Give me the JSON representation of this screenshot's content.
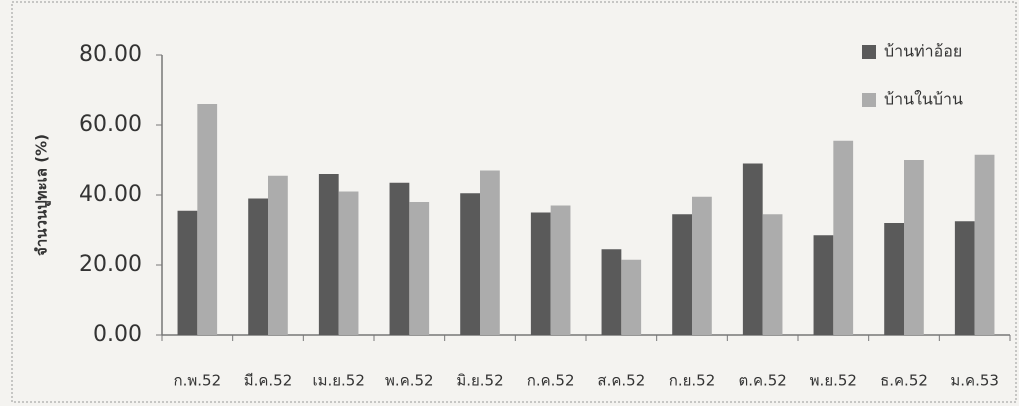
{
  "chart_data": {
    "type": "bar",
    "y_label": "จำนวนปูทะเล (%)",
    "categories": [
      "ก.พ.52",
      "มี.ค.52",
      "เม.ย.52",
      "พ.ค.52",
      "มิ.ย.52",
      "ก.ค.52",
      "ส.ค.52",
      "ก.ย.52",
      "ต.ค.52",
      "พ.ย.52",
      "ธ.ค.52",
      "ม.ค.53"
    ],
    "series": [
      {
        "name": "บ้านท่าอ้อย",
        "color": "#5a5a5a",
        "values": [
          35.5,
          39,
          46,
          43.5,
          40.5,
          35,
          24.5,
          34.5,
          49,
          28.5,
          32,
          32.5
        ]
      },
      {
        "name": "บ้านในบ้าน",
        "color": "#acacac",
        "values": [
          66,
          45.5,
          41,
          38,
          47,
          37,
          21.5,
          39.5,
          34.5,
          55.5,
          50,
          51.5
        ]
      }
    ],
    "ylim": [
      0,
      80
    ],
    "yticks": [
      {
        "value": 0,
        "label": "0.00"
      },
      {
        "value": 20,
        "label": "20.00"
      },
      {
        "value": 40,
        "label": "40.00"
      },
      {
        "value": 60,
        "label": "60.00"
      },
      {
        "value": 80,
        "label": "80.00"
      }
    ],
    "legend": "top-right",
    "grid": false
  }
}
